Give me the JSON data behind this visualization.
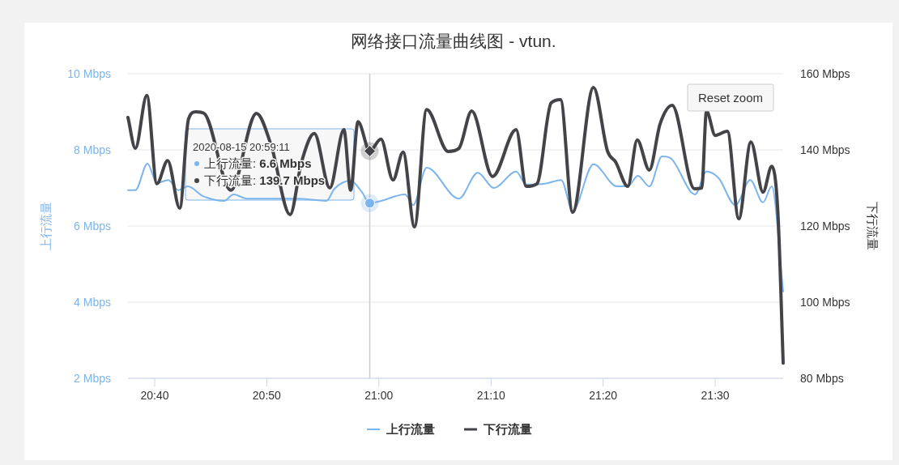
{
  "chart_data": {
    "type": "line",
    "title": "网络接口流量曲线图 - vtun.",
    "ylabel": "上行流量",
    "y2label": "下行流量",
    "xlim": [
      20.627,
      21.601
    ],
    "xticks": [
      {
        "value": 20.6667,
        "label": "20:40"
      },
      {
        "value": 20.8333,
        "label": "20:50"
      },
      {
        "value": 21.0,
        "label": "21:00"
      },
      {
        "value": 21.1667,
        "label": "21:10"
      },
      {
        "value": 21.3333,
        "label": "21:20"
      },
      {
        "value": 21.5,
        "label": "21:30"
      }
    ],
    "ylim": [
      2,
      10
    ],
    "yticks": [
      {
        "value": 2,
        "label": "2 Mbps"
      },
      {
        "value": 4,
        "label": "4 Mbps"
      },
      {
        "value": 6,
        "label": "6 Mbps"
      },
      {
        "value": 8,
        "label": "8 Mbps"
      },
      {
        "value": 10,
        "label": "10 Mbps"
      }
    ],
    "y2lim": [
      80,
      160
    ],
    "y2ticks": [
      {
        "value": 80,
        "label": "80 Mbps"
      },
      {
        "value": 100,
        "label": "100 Mbps"
      },
      {
        "value": 120,
        "label": "120 Mbps"
      },
      {
        "value": 140,
        "label": "140 Mbps"
      },
      {
        "value": 160,
        "label": "160 Mbps"
      }
    ],
    "grid": "y",
    "legend": "bottom",
    "ref_lines": [
      {
        "axis": "x",
        "value": 20.9864
      }
    ],
    "annotations": [
      "2020-08-15 20:59:11",
      "上行流量: **6.6 Mbps**",
      "下行流量: **139.7 Mbps**",
      "Reset zoom"
    ],
    "series": [
      {
        "name": "上行流量",
        "color": "#7cb5ec",
        "x": [
          20.627,
          20.638,
          20.656,
          20.67,
          20.687,
          20.702,
          20.716,
          20.738,
          20.77,
          20.784,
          20.804,
          20.834,
          20.879,
          20.922,
          20.934,
          20.958,
          20.974,
          20.9864,
          21.003,
          21.039,
          21.051,
          21.071,
          21.119,
          21.147,
          21.171,
          21.204,
          21.219,
          21.247,
          21.271,
          21.288,
          21.319,
          21.354,
          21.37,
          21.385,
          21.402,
          21.421,
          21.433,
          21.464,
          21.47,
          21.487,
          21.505,
          21.53,
          21.552,
          21.571,
          21.584,
          21.601
        ],
        "values": [
          6.94,
          6.94,
          7.64,
          7.13,
          7.21,
          6.94,
          7.04,
          6.79,
          6.66,
          6.83,
          6.72,
          6.72,
          6.72,
          6.66,
          6.98,
          7.19,
          6.91,
          6.6,
          6.66,
          6.83,
          6.55,
          7.53,
          6.72,
          7.4,
          7.0,
          7.43,
          7.09,
          7.11,
          7.21,
          6.4,
          7.62,
          7.04,
          7.04,
          7.32,
          7.04,
          7.83,
          7.79,
          6.89,
          6.83,
          7.43,
          7.26,
          6.55,
          7.21,
          6.62,
          7.04,
          4.28
        ]
      },
      {
        "name": "下行流量",
        "color": "#434348",
        "axis": "y2",
        "x": [
          20.627,
          20.638,
          20.655,
          20.67,
          20.686,
          20.704,
          20.717,
          20.728,
          20.74,
          20.78,
          20.818,
          20.84,
          20.868,
          20.885,
          20.904,
          20.927,
          20.948,
          20.958,
          20.969,
          20.9864,
          21.003,
          21.021,
          21.036,
          21.053,
          21.071,
          21.103,
          21.119,
          21.138,
          21.169,
          21.204,
          21.219,
          21.235,
          21.256,
          21.27,
          21.288,
          21.319,
          21.34,
          21.352,
          21.37,
          21.384,
          21.402,
          21.418,
          21.436,
          21.469,
          21.48,
          21.487,
          21.5,
          21.518,
          21.535,
          21.553,
          21.571,
          21.584,
          21.593,
          21.601
        ],
        "values": [
          148.5,
          140.4,
          154.3,
          131.1,
          137.2,
          124.7,
          148.1,
          150.0,
          149.6,
          129.4,
          149.6,
          141.1,
          123.0,
          136.8,
          144.3,
          130.0,
          145.3,
          129.4,
          147.4,
          139.7,
          142.8,
          132.1,
          139.4,
          119.8,
          150.6,
          139.6,
          140.4,
          150.2,
          133.0,
          145.3,
          130.4,
          131.1,
          152.3,
          153.2,
          123.6,
          156.4,
          139.6,
          136.8,
          130.4,
          142.6,
          134.7,
          146.8,
          151.7,
          129.8,
          130.0,
          150.2,
          143.8,
          144.9,
          121.9,
          142.1,
          128.9,
          135.7,
          124.0,
          84.0
        ]
      }
    ]
  }
}
